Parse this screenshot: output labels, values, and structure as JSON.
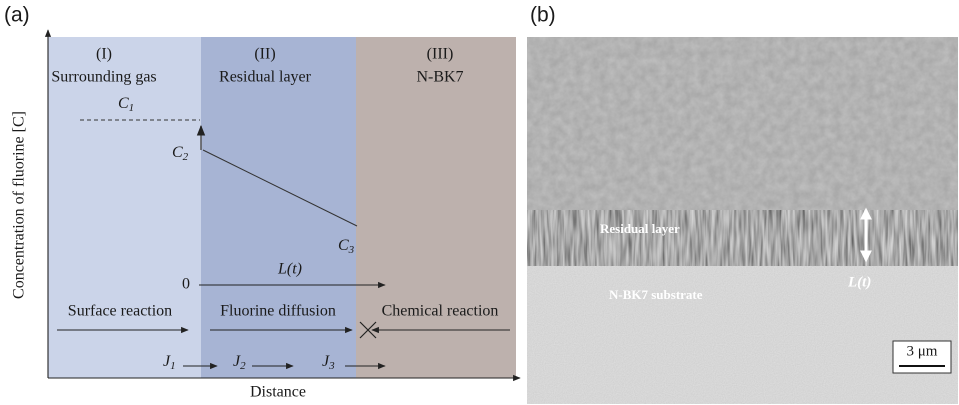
{
  "panel_a": {
    "label": "(a)",
    "regions": [
      {
        "numeral": "(I)",
        "name": "Surrounding gas"
      },
      {
        "numeral": "(II)",
        "name": "Residual layer"
      },
      {
        "numeral": "(III)",
        "name": "N-BK7"
      }
    ],
    "c1": {
      "main": "C",
      "sub": "1"
    },
    "c2": {
      "main": "C",
      "sub": "2"
    },
    "c3": {
      "main": "C",
      "sub": "3"
    },
    "zero": "0",
    "length": "L(t)",
    "processes": [
      "Surface reaction",
      "Fluorine diffusion",
      "Chemical reaction"
    ],
    "fluxes": [
      {
        "main": "J",
        "sub": "1"
      },
      {
        "main": "J",
        "sub": "2"
      },
      {
        "main": "J",
        "sub": "3"
      }
    ],
    "x_axis_label": "Distance",
    "y_axis_label": "Concentration of fluorine [C]"
  },
  "panel_b": {
    "label": "(b)",
    "residual_layer": "Residual layer",
    "substrate": "N-BK7 substrate",
    "length": "L(t)",
    "scale_bar": "3 μm"
  }
}
